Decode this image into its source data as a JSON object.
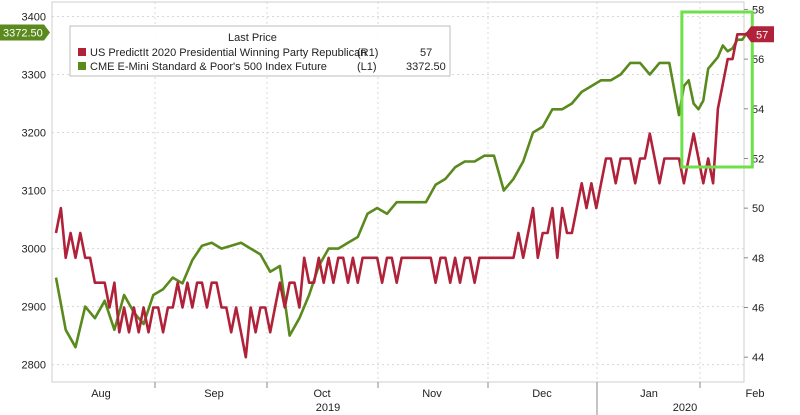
{
  "chart_data": {
    "type": "line",
    "title": "",
    "legend": {
      "title": "Last Price",
      "placement": "top-left",
      "entries": [
        {
          "name": "US PredictIt 2020 Presidential Winning Party Republican",
          "axis": "(R1)",
          "last": "57",
          "color": "#b0213a"
        },
        {
          "name": "CME E-Mini Standard & Poor's 500 Index Future",
          "axis": "(L1)",
          "last": "3372.50",
          "color": "#5a8a1e"
        }
      ]
    },
    "grid": true,
    "left_axis": {
      "ticks": [
        2800,
        2900,
        3000,
        3100,
        3200,
        3300,
        3400
      ],
      "ylim": [
        2770,
        3425
      ],
      "last_tag": "3372.50"
    },
    "right_axis": {
      "ticks": [
        44,
        46,
        48,
        50,
        52,
        54,
        56,
        58
      ],
      "ylim": [
        43,
        58.3
      ],
      "last_tag": "57"
    },
    "x_axis": {
      "month_labels": [
        "Aug",
        "Sep",
        "Oct",
        "Nov",
        "Dec",
        "Jan",
        "Feb"
      ],
      "year_labels": [
        "2019",
        "2020"
      ],
      "xlim": [
        0,
        143
      ]
    },
    "highlight": {
      "x_range": [
        129,
        141
      ],
      "color": "#6ee04a"
    },
    "series": [
      {
        "name": "CME E-Mini Standard & Poor's 500 Index Future",
        "axis": "left",
        "color": "#5a8a1e",
        "x": [
          0,
          2,
          4,
          6,
          8,
          10,
          12,
          14,
          16,
          18,
          20,
          22,
          24,
          26,
          28,
          30,
          32,
          34,
          36,
          38,
          40,
          42,
          44,
          46,
          48,
          50,
          52,
          54,
          56,
          58,
          60,
          62,
          64,
          66,
          68,
          70,
          72,
          74,
          76,
          78,
          80,
          82,
          84,
          86,
          88,
          90,
          92,
          94,
          96,
          98,
          100,
          102,
          104,
          106,
          108,
          110,
          112,
          114,
          116,
          118,
          120,
          122,
          124,
          126,
          128,
          129,
          130,
          131,
          132,
          133,
          134,
          135,
          136,
          137,
          138,
          139,
          140,
          141,
          142
        ],
        "values": [
          2950,
          2860,
          2830,
          2900,
          2880,
          2910,
          2860,
          2920,
          2890,
          2870,
          2920,
          2930,
          2950,
          2940,
          2980,
          3005,
          3010,
          3000,
          3005,
          3010,
          3000,
          2990,
          2960,
          2970,
          2850,
          2880,
          2920,
          2970,
          3000,
          3000,
          3010,
          3020,
          3060,
          3070,
          3060,
          3080,
          3080,
          3080,
          3080,
          3110,
          3120,
          3140,
          3150,
          3150,
          3160,
          3160,
          3100,
          3120,
          3150,
          3200,
          3210,
          3240,
          3240,
          3250,
          3270,
          3280,
          3290,
          3290,
          3300,
          3320,
          3320,
          3300,
          3320,
          3320,
          3230,
          3280,
          3290,
          3250,
          3240,
          3255,
          3310,
          3320,
          3330,
          3350,
          3340,
          3345,
          3360,
          3360,
          3372.5
        ]
      },
      {
        "name": "US PredictIt 2020 Presidential Winning Party Republican",
        "axis": "right",
        "color": "#b0213a",
        "x": [
          0,
          1,
          2,
          3,
          4,
          5,
          6,
          7,
          8,
          9,
          10,
          11,
          12,
          13,
          14,
          15,
          16,
          17,
          18,
          19,
          20,
          21,
          22,
          23,
          24,
          25,
          26,
          27,
          28,
          29,
          30,
          31,
          32,
          33,
          34,
          35,
          36,
          37,
          38,
          39,
          40,
          41,
          42,
          43,
          44,
          45,
          46,
          47,
          48,
          49,
          50,
          51,
          52,
          53,
          54,
          55,
          56,
          57,
          58,
          59,
          60,
          61,
          62,
          63,
          64,
          65,
          66,
          67,
          68,
          69,
          70,
          71,
          72,
          73,
          74,
          75,
          76,
          77,
          78,
          79,
          80,
          81,
          82,
          83,
          84,
          85,
          86,
          87,
          88,
          89,
          90,
          91,
          92,
          93,
          94,
          95,
          96,
          97,
          98,
          99,
          100,
          101,
          102,
          103,
          104,
          105,
          106,
          107,
          108,
          109,
          110,
          111,
          112,
          113,
          114,
          115,
          116,
          117,
          118,
          119,
          120,
          121,
          122,
          123,
          124,
          125,
          126,
          127,
          128,
          129,
          130,
          131,
          132,
          133,
          134,
          135,
          136,
          137,
          138,
          139,
          140,
          141,
          142
        ],
        "values": [
          49,
          50,
          48,
          49,
          48,
          49,
          48,
          48,
          47,
          47,
          47,
          46,
          47,
          45,
          46,
          45,
          46,
          45,
          46,
          45,
          46,
          46,
          45,
          46,
          46,
          47,
          46,
          47,
          46,
          47,
          47,
          46,
          47,
          47,
          46,
          46,
          45,
          46,
          45,
          44,
          46,
          45,
          46,
          46,
          45,
          46,
          47,
          46,
          47,
          47,
          46,
          48,
          47,
          47,
          48,
          47,
          48,
          47,
          48,
          48,
          47,
          48,
          47,
          48,
          48,
          48,
          48,
          47,
          48,
          48,
          47,
          48,
          48,
          48,
          48,
          48,
          48,
          48,
          47,
          48,
          48,
          47,
          48,
          47,
          48,
          48,
          47,
          48,
          48,
          48,
          48,
          48,
          48,
          48,
          48,
          49,
          48,
          49,
          50,
          48,
          49,
          49,
          50,
          48,
          50,
          49,
          49,
          50,
          51,
          50,
          51,
          50,
          51,
          52,
          52,
          51,
          52,
          52,
          52,
          51,
          52,
          52,
          53,
          52,
          51,
          52,
          52,
          52,
          52,
          51,
          52,
          53,
          52,
          51,
          52,
          51,
          54,
          55,
          56,
          56,
          57,
          57,
          57
        ]
      }
    ]
  }
}
